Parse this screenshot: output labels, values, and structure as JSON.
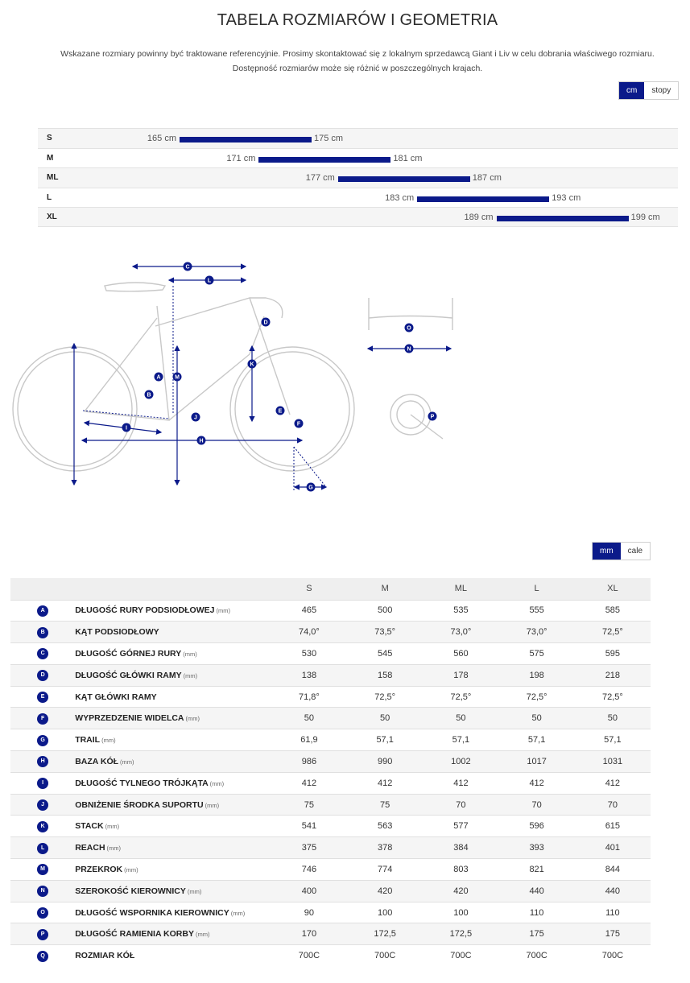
{
  "header": {
    "title": "TABELA ROZMIARÓW I GEOMETRIA",
    "note_line1": "Wskazane rozmiary powinny być traktowane referencyjnie. Prosimy skontaktować się z lokalnym sprzedawcą Giant i Liv w celu dobrania właściwego rozmiaru.",
    "note_line2": "Dostępność rozmiarów może się różnić w poszczególnych krajach."
  },
  "height_unit_toggle": {
    "options": [
      "cm",
      "stopy"
    ],
    "active": "cm"
  },
  "size_ranges": [
    {
      "size": "S",
      "min": 165,
      "max": 175,
      "min_label": "165 cm",
      "max_label": "175 cm"
    },
    {
      "size": "M",
      "min": 171,
      "max": 181,
      "min_label": "171 cm",
      "max_label": "181 cm"
    },
    {
      "size": "ML",
      "min": 177,
      "max": 187,
      "min_label": "177 cm",
      "max_label": "187 cm"
    },
    {
      "size": "L",
      "min": 183,
      "max": 193,
      "min_label": "183 cm",
      "max_label": "193 cm"
    },
    {
      "size": "XL",
      "min": 189,
      "max": 199,
      "min_label": "189 cm",
      "max_label": "199 cm"
    }
  ],
  "diagram": {
    "markers": [
      "A",
      "B",
      "C",
      "D",
      "E",
      "F",
      "G",
      "H",
      "I",
      "J",
      "K",
      "L",
      "M",
      "N",
      "O",
      "P"
    ],
    "colors": {
      "line": "#0b1a8a",
      "frame": "#c8c8c8"
    }
  },
  "geometry_unit_toggle": {
    "options": [
      "mm",
      "cale"
    ],
    "active": "mm"
  },
  "geometry": {
    "columns": [
      "S",
      "M",
      "ML",
      "L",
      "XL"
    ],
    "rows": [
      {
        "key": "A",
        "label": "DŁUGOŚĆ RURY PODSIODŁOWEJ",
        "unit": "(mm)",
        "values": [
          "465",
          "500",
          "535",
          "555",
          "585"
        ]
      },
      {
        "key": "B",
        "label": "KĄT PODSIODŁOWY",
        "unit": "",
        "values": [
          "74,0°",
          "73,5°",
          "73,0°",
          "73,0°",
          "72,5°"
        ]
      },
      {
        "key": "C",
        "label": "DŁUGOŚĆ GÓRNEJ RURY",
        "unit": "(mm)",
        "values": [
          "530",
          "545",
          "560",
          "575",
          "595"
        ]
      },
      {
        "key": "D",
        "label": "DŁUGOŚĆ GŁÓWKI RAMY",
        "unit": "(mm)",
        "values": [
          "138",
          "158",
          "178",
          "198",
          "218"
        ]
      },
      {
        "key": "E",
        "label": "KĄT GŁÓWKI RAMY",
        "unit": "",
        "values": [
          "71,8°",
          "72,5°",
          "72,5°",
          "72,5°",
          "72,5°"
        ]
      },
      {
        "key": "F",
        "label": "WYPRZEDZENIE WIDELCA",
        "unit": "(mm)",
        "values": [
          "50",
          "50",
          "50",
          "50",
          "50"
        ]
      },
      {
        "key": "G",
        "label": "TRAIL",
        "unit": "(mm)",
        "values": [
          "61,9",
          "57,1",
          "57,1",
          "57,1",
          "57,1"
        ]
      },
      {
        "key": "H",
        "label": "BAZA KÓŁ",
        "unit": "(mm)",
        "values": [
          "986",
          "990",
          "1002",
          "1017",
          "1031"
        ]
      },
      {
        "key": "I",
        "label": "DŁUGOŚĆ TYLNEGO TRÓJKĄTA",
        "unit": "(mm)",
        "values": [
          "412",
          "412",
          "412",
          "412",
          "412"
        ]
      },
      {
        "key": "J",
        "label": "OBNIŻENIE ŚRODKA SUPORTU",
        "unit": "(mm)",
        "values": [
          "75",
          "75",
          "70",
          "70",
          "70"
        ]
      },
      {
        "key": "K",
        "label": "STACK",
        "unit": "(mm)",
        "values": [
          "541",
          "563",
          "577",
          "596",
          "615"
        ]
      },
      {
        "key": "L",
        "label": "REACH",
        "unit": "(mm)",
        "values": [
          "375",
          "378",
          "384",
          "393",
          "401"
        ]
      },
      {
        "key": "M",
        "label": "PRZEKROK",
        "unit": "(mm)",
        "values": [
          "746",
          "774",
          "803",
          "821",
          "844"
        ]
      },
      {
        "key": "N",
        "label": "SZEROKOŚĆ KIEROWNICY",
        "unit": "(mm)",
        "values": [
          "400",
          "420",
          "420",
          "440",
          "440"
        ]
      },
      {
        "key": "O",
        "label": "DŁUGOŚĆ WSPORNIKA KIEROWNICY",
        "unit": "(mm)",
        "values": [
          "90",
          "100",
          "100",
          "110",
          "110"
        ]
      },
      {
        "key": "P",
        "label": "DŁUGOŚĆ RAMIENIA KORBY",
        "unit": "(mm)",
        "values": [
          "170",
          "172,5",
          "172,5",
          "175",
          "175"
        ]
      },
      {
        "key": "Q",
        "label": "ROZMIAR KÓŁ",
        "unit": "",
        "values": [
          "700C",
          "700C",
          "700C",
          "700C",
          "700C"
        ]
      }
    ]
  }
}
